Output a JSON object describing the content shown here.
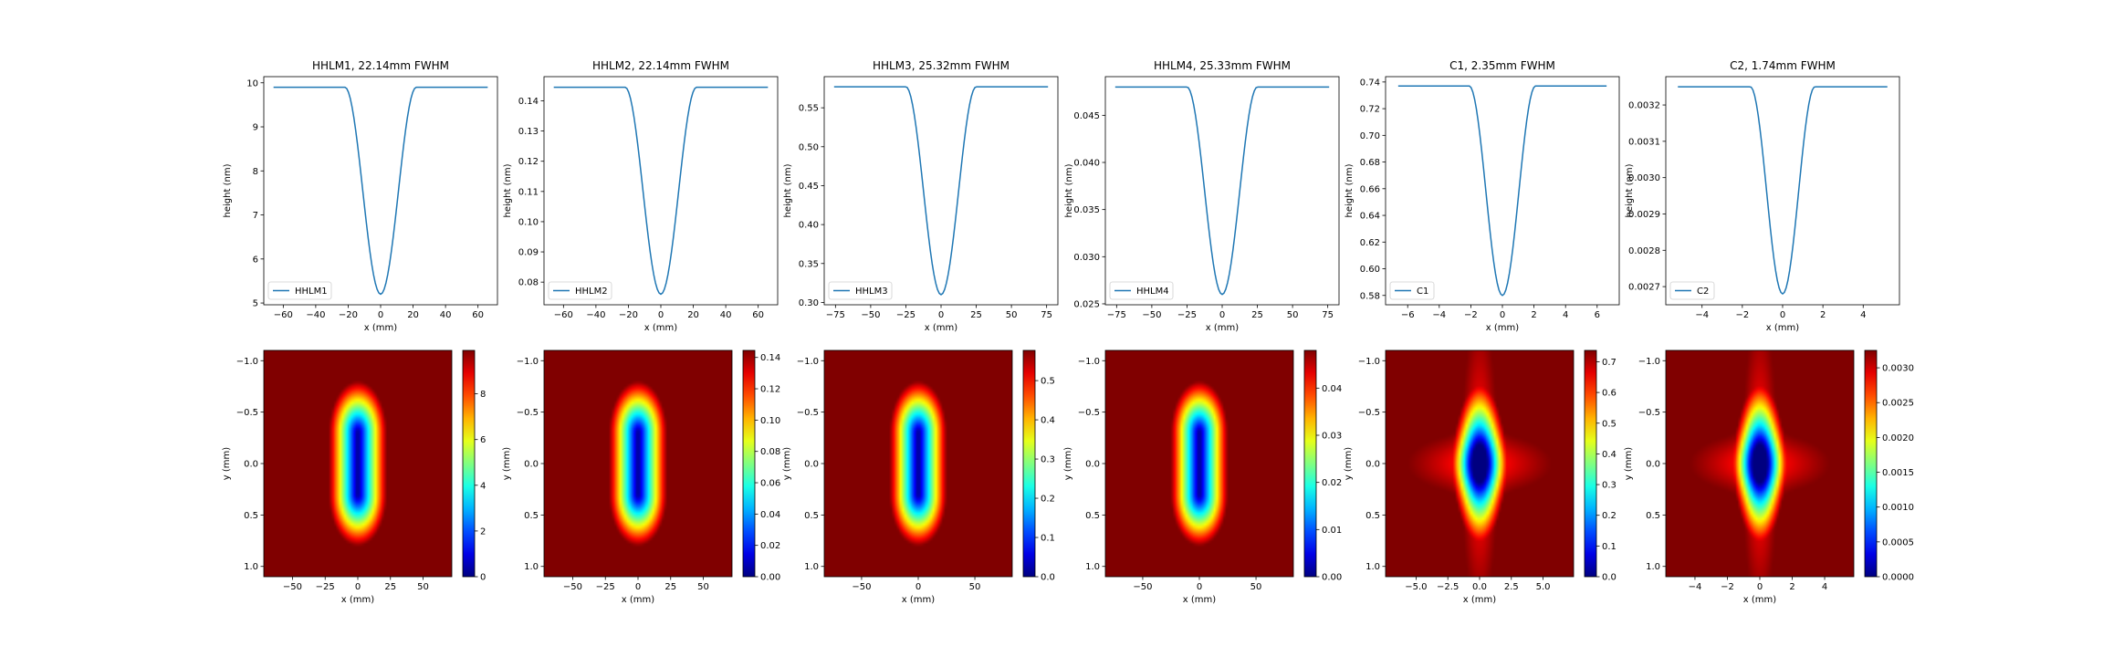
{
  "figure": {
    "layout": "2 rows x 6 columns"
  },
  "chart_data": [
    {
      "type": "line",
      "title": "HHLM1, 22.14mm FWHM",
      "xlabel": "x (mm)",
      "ylabel": "height (nm)",
      "legend": "HHLM1",
      "legend_position": "lower-left",
      "color": "#1f77b4",
      "profile": {
        "half_width": 22,
        "x_extent": 66,
        "min": 5.2,
        "max": 9.9
      },
      "xlim": [
        -72,
        72
      ],
      "ylim": [
        4.96,
        10.14
      ],
      "xticks": [
        -60,
        -40,
        -20,
        0,
        20,
        40,
        60
      ],
      "xtick_labels": [
        "−60",
        "−40",
        "−20",
        "0",
        "20",
        "40",
        "60"
      ],
      "yticks": [
        5,
        6,
        7,
        8,
        9,
        10
      ],
      "ytick_labels": [
        "5",
        "6",
        "7",
        "8",
        "9",
        "10"
      ]
    },
    {
      "type": "line",
      "title": "HHLM2, 22.14mm FWHM",
      "xlabel": "x (mm)",
      "ylabel": "height (nm)",
      "legend": "HHLM2",
      "legend_position": "lower-left",
      "color": "#1f77b4",
      "profile": {
        "half_width": 22,
        "x_extent": 66,
        "min": 0.076,
        "max": 0.1445
      },
      "xlim": [
        -72,
        72
      ],
      "ylim": [
        0.0725,
        0.148
      ],
      "xticks": [
        -60,
        -40,
        -20,
        0,
        20,
        40,
        60
      ],
      "xtick_labels": [
        "−60",
        "−40",
        "−20",
        "0",
        "20",
        "40",
        "60"
      ],
      "yticks": [
        0.08,
        0.09,
        0.1,
        0.11,
        0.12,
        0.13,
        0.14
      ],
      "ytick_labels": [
        "0.08",
        "0.09",
        "0.10",
        "0.11",
        "0.12",
        "0.13",
        "0.14"
      ]
    },
    {
      "type": "line",
      "title": "HHLM3, 25.32mm FWHM",
      "xlabel": "x (mm)",
      "ylabel": "height (nm)",
      "legend": "HHLM3",
      "legend_position": "lower-left",
      "color": "#1f77b4",
      "profile": {
        "half_width": 25,
        "x_extent": 76,
        "min": 0.31,
        "max": 0.577
      },
      "xlim": [
        -83,
        83
      ],
      "ylim": [
        0.297,
        0.59
      ],
      "xticks": [
        -75,
        -50,
        -25,
        0,
        25,
        50,
        75
      ],
      "xtick_labels": [
        "−75",
        "−50",
        "−25",
        "0",
        "25",
        "50",
        "75"
      ],
      "yticks": [
        0.3,
        0.35,
        0.4,
        0.45,
        0.5,
        0.55
      ],
      "ytick_labels": [
        "0.30",
        "0.35",
        "0.40",
        "0.45",
        "0.50",
        "0.55"
      ]
    },
    {
      "type": "line",
      "title": "HHLM4, 25.33mm FWHM",
      "xlabel": "x (mm)",
      "ylabel": "height (nm)",
      "legend": "HHLM4",
      "legend_position": "lower-left",
      "color": "#1f77b4",
      "profile": {
        "half_width": 25,
        "x_extent": 76,
        "min": 0.026,
        "max": 0.048
      },
      "xlim": [
        -83,
        83
      ],
      "ylim": [
        0.0249,
        0.0491
      ],
      "xticks": [
        -75,
        -50,
        -25,
        0,
        25,
        50,
        75
      ],
      "xtick_labels": [
        "−75",
        "−50",
        "−25",
        "0",
        "25",
        "50",
        "75"
      ],
      "yticks": [
        0.025,
        0.03,
        0.035,
        0.04,
        0.045
      ],
      "ytick_labels": [
        "0.025",
        "0.030",
        "0.035",
        "0.040",
        "0.045"
      ]
    },
    {
      "type": "line",
      "title": "C1, 2.35mm FWHM",
      "xlabel": "x (mm)",
      "ylabel": "height (nm)",
      "legend": "C1",
      "legend_position": "lower-left",
      "color": "#1f77b4",
      "profile": {
        "half_width": 2.1,
        "x_extent": 6.6,
        "min": 0.58,
        "max": 0.737
      },
      "xlim": [
        -7.4,
        7.4
      ],
      "ylim": [
        0.573,
        0.744
      ],
      "xticks": [
        -6,
        -4,
        -2,
        0,
        2,
        4,
        6
      ],
      "xtick_labels": [
        "−6",
        "−4",
        "−2",
        "0",
        "2",
        "4",
        "6"
      ],
      "yticks": [
        0.58,
        0.6,
        0.62,
        0.64,
        0.66,
        0.68,
        0.7,
        0.72,
        0.74
      ],
      "ytick_labels": [
        "0.58",
        "0.60",
        "0.62",
        "0.64",
        "0.66",
        "0.68",
        "0.70",
        "0.72",
        "0.74"
      ]
    },
    {
      "type": "line",
      "title": "C2, 1.74mm FWHM",
      "xlabel": "x (mm)",
      "ylabel": "height (nm)",
      "legend": "C2",
      "legend_position": "lower-left",
      "color": "#1f77b4",
      "profile": {
        "half_width": 1.6,
        "x_extent": 5.2,
        "min": 0.00268,
        "max": 0.00325
      },
      "xlim": [
        -5.8,
        5.8
      ],
      "ylim": [
        0.00265,
        0.003278
      ],
      "xticks": [
        -4,
        -2,
        0,
        2,
        4
      ],
      "xtick_labels": [
        "−4",
        "−2",
        "0",
        "2",
        "4"
      ],
      "yticks": [
        0.0027,
        0.0028,
        0.0029,
        0.003,
        0.0031,
        0.0032
      ],
      "ytick_labels": [
        "0.0027",
        "0.0028",
        "0.0029",
        "0.0030",
        "0.0031",
        "0.0032"
      ]
    },
    {
      "type": "heatmap",
      "colormap": "jet",
      "shape": "ellipse",
      "xlabel": "x (mm)",
      "ylabel": "y (mm)",
      "xlim": [
        -72,
        72
      ],
      "ylim": [
        1.1,
        -1.1
      ],
      "xticks": [
        -50,
        -25,
        0,
        25,
        50
      ],
      "xtick_labels": [
        "−50",
        "−25",
        "0",
        "25",
        "50"
      ],
      "yticks": [
        -1.0,
        -0.5,
        0.0,
        0.5,
        1.0
      ],
      "ytick_labels": [
        "−1.0",
        "−0.5",
        "0.0",
        "0.5",
        "1.0"
      ],
      "colorbar_range": [
        0,
        9.9
      ],
      "colorbar_ticks": [
        0,
        2,
        4,
        6,
        8
      ],
      "colorbar_tick_labels": [
        "0",
        "2",
        "4",
        "6",
        "8"
      ]
    },
    {
      "type": "heatmap",
      "colormap": "jet",
      "shape": "ellipse",
      "xlabel": "x (mm)",
      "ylabel": "y (mm)",
      "xlim": [
        -72,
        72
      ],
      "ylim": [
        1.1,
        -1.1
      ],
      "xticks": [
        -50,
        -25,
        0,
        25,
        50
      ],
      "xtick_labels": [
        "−50",
        "−25",
        "0",
        "25",
        "50"
      ],
      "yticks": [
        -1.0,
        -0.5,
        0.0,
        0.5,
        1.0
      ],
      "ytick_labels": [
        "−1.0",
        "−0.5",
        "0.0",
        "0.5",
        "1.0"
      ],
      "colorbar_range": [
        0,
        0.1445
      ],
      "colorbar_ticks": [
        0,
        0.02,
        0.04,
        0.06,
        0.08,
        0.1,
        0.12,
        0.14
      ],
      "colorbar_tick_labels": [
        "0.00",
        "0.02",
        "0.04",
        "0.06",
        "0.08",
        "0.10",
        "0.12",
        "0.14"
      ]
    },
    {
      "type": "heatmap",
      "colormap": "jet",
      "shape": "ellipse",
      "xlabel": "x (mm)",
      "ylabel": "y (mm)",
      "xlim": [
        -83,
        83
      ],
      "ylim": [
        1.1,
        -1.1
      ],
      "xticks": [
        -50,
        0,
        50
      ],
      "xtick_labels": [
        "−50",
        "0",
        "50"
      ],
      "yticks": [
        -1.0,
        -0.5,
        0.0,
        0.5,
        1.0
      ],
      "ytick_labels": [
        "−1.0",
        "−0.5",
        "0.0",
        "0.5",
        "1.0"
      ],
      "colorbar_range": [
        0,
        0.577
      ],
      "colorbar_ticks": [
        0.0,
        0.1,
        0.2,
        0.3,
        0.4,
        0.5
      ],
      "colorbar_tick_labels": [
        "0.0",
        "0.1",
        "0.2",
        "0.3",
        "0.4",
        "0.5"
      ]
    },
    {
      "type": "heatmap",
      "colormap": "jet",
      "shape": "ellipse",
      "xlabel": "x (mm)",
      "ylabel": "y (mm)",
      "xlim": [
        -83,
        83
      ],
      "ylim": [
        1.1,
        -1.1
      ],
      "xticks": [
        -50,
        0,
        50
      ],
      "xtick_labels": [
        "−50",
        "0",
        "50"
      ],
      "yticks": [
        -1.0,
        -0.5,
        0.0,
        0.5,
        1.0
      ],
      "ytick_labels": [
        "−1.0",
        "−0.5",
        "0.0",
        "0.5",
        "1.0"
      ],
      "colorbar_range": [
        0,
        0.048
      ],
      "colorbar_ticks": [
        0.0,
        0.01,
        0.02,
        0.03,
        0.04
      ],
      "colorbar_tick_labels": [
        "0.00",
        "0.01",
        "0.02",
        "0.03",
        "0.04"
      ]
    },
    {
      "type": "heatmap",
      "colormap": "jet",
      "shape": "cross",
      "xlabel": "x (mm)",
      "ylabel": "y (mm)",
      "xlim": [
        -7.4,
        7.4
      ],
      "ylim": [
        1.1,
        -1.1
      ],
      "xticks": [
        -5,
        -2.5,
        0,
        2.5,
        5
      ],
      "xtick_labels": [
        "−5.0",
        "−2.5",
        "0.0",
        "2.5",
        "5.0"
      ],
      "yticks": [
        -1.0,
        -0.5,
        0.0,
        0.5,
        1.0
      ],
      "ytick_labels": [
        "−1.0",
        "−0.5",
        "0.0",
        "0.5",
        "1.0"
      ],
      "colorbar_range": [
        0,
        0.737
      ],
      "colorbar_ticks": [
        0.0,
        0.1,
        0.2,
        0.3,
        0.4,
        0.5,
        0.6,
        0.7
      ],
      "colorbar_tick_labels": [
        "0.0",
        "0.1",
        "0.2",
        "0.3",
        "0.4",
        "0.5",
        "0.6",
        "0.7"
      ]
    },
    {
      "type": "heatmap",
      "colormap": "jet",
      "shape": "cross",
      "xlabel": "x (mm)",
      "ylabel": "y (mm)",
      "xlim": [
        -5.8,
        5.8
      ],
      "ylim": [
        1.1,
        -1.1
      ],
      "xticks": [
        -4,
        -2,
        0,
        2,
        4
      ],
      "xtick_labels": [
        "−4",
        "−2",
        "0",
        "2",
        "4"
      ],
      "yticks": [
        -1.0,
        -0.5,
        0.0,
        0.5,
        1.0
      ],
      "ytick_labels": [
        "−1.0",
        "−0.5",
        "0.0",
        "0.5",
        "1.0"
      ],
      "colorbar_range": [
        0,
        0.00325
      ],
      "colorbar_ticks": [
        0,
        0.0005,
        0.001,
        0.0015,
        0.002,
        0.0025,
        0.003
      ],
      "colorbar_tick_labels": [
        "0.0000",
        "0.0005",
        "0.0010",
        "0.0015",
        "0.0020",
        "0.0025",
        "0.0030"
      ]
    }
  ]
}
